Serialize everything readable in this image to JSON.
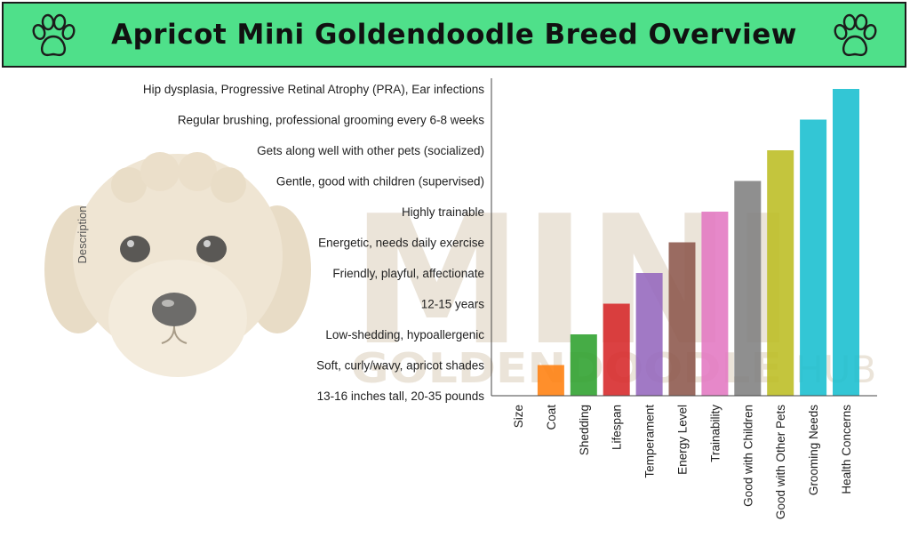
{
  "header": {
    "title": "Apricot Mini Goldendoodle Breed Overview",
    "icons": [
      "paw-icon",
      "paw-icon"
    ],
    "bg_color": "#4fe08a"
  },
  "watermark": {
    "big": "MINI",
    "small_left": "GOLDENDOODLE",
    "small_right": "HUB",
    "color": "#d8c9b4"
  },
  "chart_data": {
    "type": "bar",
    "title": "",
    "xlabel": "",
    "ylabel": "Description",
    "categories": [
      "Size",
      "Coat",
      "Shedding",
      "Lifespan",
      "Temperament",
      "Energy Level",
      "Trainability",
      "Good with Children",
      "Good with Other Pets",
      "Grooming Needs",
      "Health Concerns"
    ],
    "y_categories": [
      "13-16 inches tall, 20-35 pounds",
      "Soft, curly/wavy, apricot shades",
      "Low-shedding, hypoallergenic",
      "12-15 years",
      "Friendly, playful, affectionate",
      "Energetic, needs daily exercise",
      "Highly trainable",
      "Gentle, good with children (supervised)",
      "Gets along well with other pets (socialized)",
      "Regular brushing, professional grooming every 6-8 weeks",
      "Hip dysplasia, Progressive Retinal Atrophy (PRA), Ear infections"
    ],
    "values": [
      "13-16 inches tall, 20-35 pounds",
      "Soft, curly/wavy, apricot shades",
      "Low-shedding, hypoallergenic",
      "12-15 years",
      "Friendly, playful, affectionate",
      "Energetic, needs daily exercise",
      "Highly trainable",
      "Gentle, good with children (supervised)",
      "Gets along well with other pets (socialized)",
      "Regular brushing, professional grooming every 6-8 weeks",
      "Hip dysplasia, Progressive Retinal Atrophy (PRA), Ear infections"
    ],
    "colors": [
      "#1f77b4",
      "#ff7f0e",
      "#2ca02c",
      "#d62728",
      "#9467bd",
      "#8c564b",
      "#e377c2",
      "#7f7f7f",
      "#bcbd22",
      "#17becf",
      "#17becf"
    ],
    "grid": false,
    "legend": "none"
  }
}
